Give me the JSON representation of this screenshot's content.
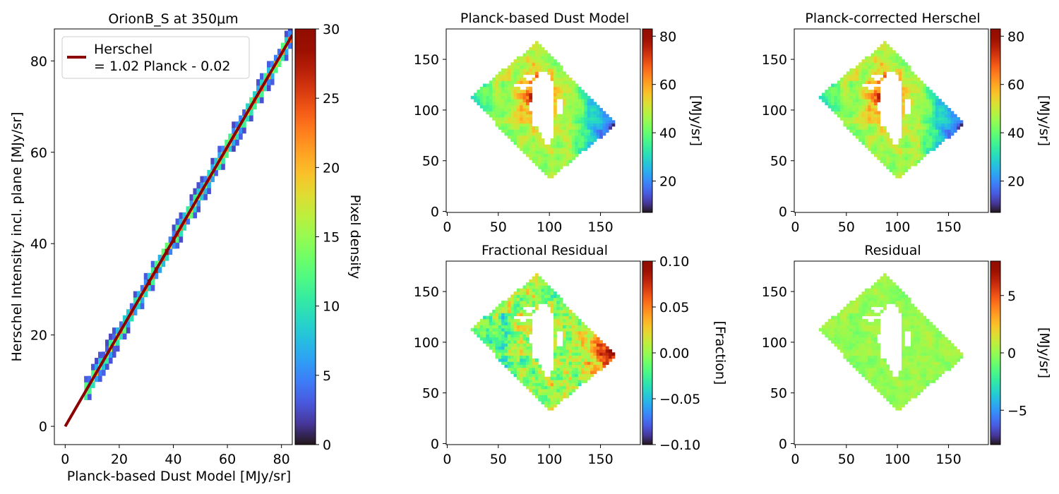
{
  "chart_data": [
    {
      "type": "heatmap",
      "title": "OrionB_S at 350μm",
      "xlabel": "Planck-based Dust Model [MJy/sr]",
      "ylabel": "Herschel Intensity incl. plane [MJy/sr]",
      "xlim": [
        -4,
        84
      ],
      "ylim": [
        -4,
        87
      ],
      "xticks": [
        "0",
        "20",
        "40",
        "60",
        "80"
      ],
      "yticks": [
        "0",
        "20",
        "40",
        "60",
        "80"
      ],
      "colorbar": {
        "label": "Pixel density",
        "range": [
          0,
          30
        ],
        "ticks": [
          "0",
          "5",
          "10",
          "15",
          "20",
          "25",
          "30"
        ],
        "colormap": "turbo"
      },
      "density_band": {
        "x_range": [
          7,
          83
        ],
        "slope": 1.02,
        "intercept": -0.02
      },
      "fit_line": {
        "slope": 1.02,
        "intercept": -0.02,
        "x_range": [
          0,
          84
        ],
        "color": "#8b0000"
      },
      "legend": {
        "label_line1": "Herschel",
        "label_line2": "= 1.02 Planck - 0.02",
        "placement": "top-left"
      }
    },
    {
      "type": "heatmap",
      "title": "Planck-based Dust Model",
      "xlim": [
        -1,
        189
      ],
      "ylim": [
        -1,
        180
      ],
      "xticks": [
        "0",
        "50",
        "100",
        "150"
      ],
      "yticks": [
        "0",
        "50",
        "100",
        "150"
      ],
      "colorbar": {
        "label": "[MJy/sr]",
        "range": [
          7,
          83
        ],
        "ticks": [
          "20",
          "40",
          "60",
          "80"
        ],
        "colormap": "turbo"
      },
      "map_kind": "model"
    },
    {
      "type": "heatmap",
      "title": "Planck-corrected Herschel",
      "xlim": [
        -1,
        189
      ],
      "ylim": [
        -1,
        180
      ],
      "xticks": [
        "0",
        "50",
        "100",
        "150"
      ],
      "yticks": [
        "0",
        "50",
        "100",
        "150"
      ],
      "colorbar": {
        "label": "[MJy/sr]",
        "range": [
          7,
          83
        ],
        "ticks": [
          "20",
          "40",
          "60",
          "80"
        ],
        "colormap": "turbo"
      },
      "map_kind": "model"
    },
    {
      "type": "heatmap",
      "title": "Fractional Residual",
      "xlim": [
        -1,
        189
      ],
      "ylim": [
        -1,
        180
      ],
      "xticks": [
        "0",
        "50",
        "100",
        "150"
      ],
      "yticks": [
        "0",
        "50",
        "100",
        "150"
      ],
      "colorbar": {
        "label": "[Fraction]",
        "range": [
          -0.1,
          0.1
        ],
        "ticks": [
          "0.10",
          "0.05",
          "0.00",
          "−0.05",
          "−0.10"
        ],
        "colormap": "turbo"
      },
      "map_kind": "fractional"
    },
    {
      "type": "heatmap",
      "title": "Residual",
      "xlim": [
        -1,
        189
      ],
      "ylim": [
        -1,
        180
      ],
      "xticks": [
        "0",
        "50",
        "100",
        "150"
      ],
      "yticks": [
        "0",
        "50",
        "100",
        "150"
      ],
      "colorbar": {
        "label": "[MJy/sr]",
        "range": [
          -8,
          8
        ],
        "ticks": [
          "5",
          "0",
          "−5"
        ],
        "colormap": "turbo"
      },
      "map_kind": "residual"
    }
  ]
}
